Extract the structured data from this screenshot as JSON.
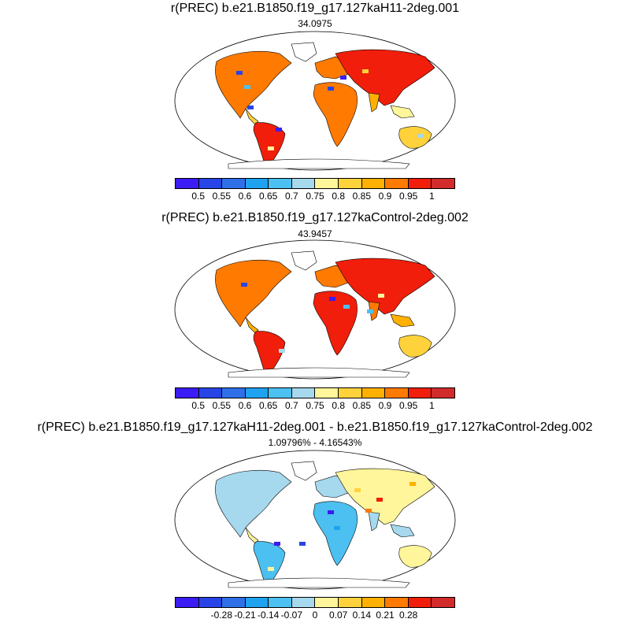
{
  "panels": [
    {
      "title": "r(PREC) b.e21.B1850.f19_g17.127kaH11-2deg.001",
      "subtitle": "34.0975",
      "palette": [
        "#3b1cf5",
        "#2745e6",
        "#2f6fe8",
        "#1fa2f0",
        "#4cc0f0",
        "#a6d8ee",
        "#fff59a",
        "#ffd23c",
        "#ffb000",
        "#ff7a00",
        "#f01e0a",
        "#d12b2b"
      ],
      "tick_labels": [
        "0.5",
        "0.55",
        "0.6",
        "0.65",
        "0.7",
        "0.75",
        "0.8",
        "0.85",
        "0.9",
        "0.95",
        "1"
      ]
    },
    {
      "title": "r(PREC) b.e21.B1850.f19_g17.127kaControl-2deg.002",
      "subtitle": "43.9457",
      "palette": [
        "#3b1cf5",
        "#2745e6",
        "#2f6fe8",
        "#1fa2f0",
        "#4cc0f0",
        "#a6d8ee",
        "#fff59a",
        "#ffd23c",
        "#ffb000",
        "#ff7a00",
        "#f01e0a",
        "#d12b2b"
      ],
      "tick_labels": [
        "0.5",
        "0.55",
        "0.6",
        "0.65",
        "0.7",
        "0.75",
        "0.8",
        "0.85",
        "0.9",
        "0.95",
        "1"
      ]
    },
    {
      "title": "r(PREC) b.e21.B1850.f19_g17.127kaH11-2deg.001 - b.e21.B1850.f19_g17.127kaControl-2deg.002",
      "subtitle": "1.09796% - 4.16543%",
      "palette": [
        "#3b1cf5",
        "#2745e6",
        "#2f6fe8",
        "#1fa2f0",
        "#4cc0f0",
        "#a6d8ee",
        "#fff59a",
        "#ffd23c",
        "#ffb000",
        "#ff7a00",
        "#f01e0a",
        "#d12b2b"
      ],
      "tick_labels": [
        "-0.28",
        "-0.21",
        "-0.14",
        "-0.07",
        "0",
        "0.07",
        "0.14",
        "0.21",
        "0.28"
      ]
    }
  ]
}
